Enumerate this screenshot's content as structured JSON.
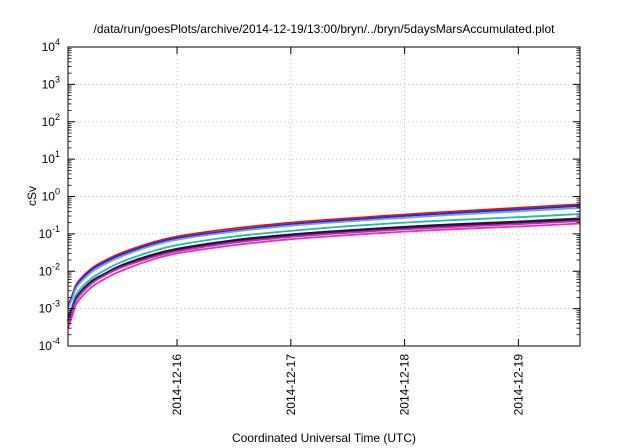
{
  "chart_data": {
    "type": "line",
    "title": "/data/run/goesPlots/archive/2014-12-19/13:00/bryn/../bryn/5daysMarsAccumulated.plot",
    "xlabel": "Coordinated Universal Time (UTC)",
    "ylabel": "cSv",
    "yscale": "log",
    "xlim": [
      "2014-12-15 01:00",
      "2014-12-19 13:00"
    ],
    "ylim": [
      0.0001,
      10000
    ],
    "grid": true,
    "legend": "none",
    "x_tick_labels": [
      "2014-12-16",
      "2014-12-17",
      "2014-12-18",
      "2014-12-19"
    ],
    "x_tick_values": [
      "2014-12-16 00:00",
      "2014-12-17 00:00",
      "2014-12-18 00:00",
      "2014-12-19 00:00"
    ],
    "y_ticks": [
      {
        "value": 0.0001,
        "base": "10",
        "exp": "-4"
      },
      {
        "value": 0.001,
        "base": "10",
        "exp": "-3"
      },
      {
        "value": 0.01,
        "base": "10",
        "exp": "-2"
      },
      {
        "value": 0.1,
        "base": "10",
        "exp": "-1"
      },
      {
        "value": 1,
        "base": "10",
        "exp": "0"
      },
      {
        "value": 10,
        "base": "10",
        "exp": "1"
      },
      {
        "value": 100,
        "base": "10",
        "exp": "2"
      },
      {
        "value": 1000,
        "base": "10",
        "exp": "3"
      },
      {
        "value": 10000,
        "base": "10",
        "exp": "4"
      }
    ],
    "x": [
      "2014-12-15 01:00",
      "2014-12-15 02:00",
      "2014-12-15 03:00",
      "2014-12-15 06:00",
      "2014-12-15 09:00",
      "2014-12-15 12:00",
      "2014-12-15 18:00",
      "2014-12-16 00:00",
      "2014-12-16 12:00",
      "2014-12-17 00:00",
      "2014-12-17 12:00",
      "2014-12-18 00:00",
      "2014-12-18 12:00",
      "2014-12-19 00:00",
      "2014-12-19 13:00"
    ],
    "series": [
      {
        "color": "#ee1111",
        "values": [
          0.0012,
          0.0025,
          0.005,
          0.012,
          0.02,
          0.03,
          0.055,
          0.085,
          0.14,
          0.2,
          0.26,
          0.33,
          0.41,
          0.5,
          0.62
        ]
      },
      {
        "color": "#1133cc",
        "values": [
          0.0011,
          0.0023,
          0.0045,
          0.011,
          0.018,
          0.027,
          0.05,
          0.077,
          0.125,
          0.18,
          0.235,
          0.3,
          0.37,
          0.45,
          0.56
        ]
      },
      {
        "color": "#7799ff",
        "values": [
          0.001,
          0.002,
          0.004,
          0.0095,
          0.016,
          0.024,
          0.045,
          0.07,
          0.115,
          0.165,
          0.215,
          0.27,
          0.335,
          0.4,
          0.5
        ]
      },
      {
        "color": "#22bbaa",
        "values": [
          0.0006,
          0.0013,
          0.0027,
          0.0065,
          0.011,
          0.017,
          0.032,
          0.05,
          0.085,
          0.12,
          0.16,
          0.2,
          0.24,
          0.28,
          0.34
        ]
      },
      {
        "color": "#0e1a3a",
        "values": [
          0.0005,
          0.0011,
          0.0022,
          0.0055,
          0.009,
          0.014,
          0.026,
          0.04,
          0.068,
          0.097,
          0.125,
          0.155,
          0.185,
          0.215,
          0.26
        ]
      },
      {
        "color": "#660033",
        "values": [
          0.00045,
          0.001,
          0.002,
          0.005,
          0.0085,
          0.013,
          0.024,
          0.037,
          0.063,
          0.09,
          0.116,
          0.143,
          0.17,
          0.197,
          0.24
        ]
      },
      {
        "color": "#9944bb",
        "values": [
          0.00042,
          0.0009,
          0.0019,
          0.0047,
          0.008,
          0.0122,
          0.022,
          0.034,
          0.058,
          0.083,
          0.107,
          0.132,
          0.157,
          0.182,
          0.22
        ]
      },
      {
        "color": "#ff22cc",
        "values": [
          0.0003,
          0.0007,
          0.0015,
          0.0038,
          0.0065,
          0.01,
          0.019,
          0.03,
          0.05,
          0.072,
          0.093,
          0.115,
          0.137,
          0.158,
          0.19
        ]
      }
    ]
  }
}
